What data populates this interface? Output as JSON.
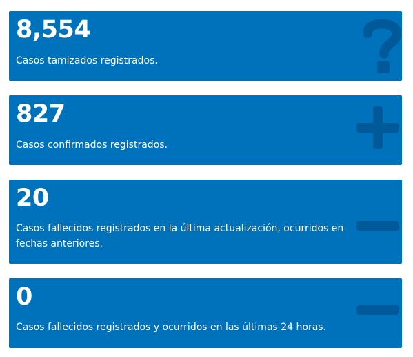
{
  "cards": [
    {
      "value": "8,554",
      "label": "Casos tamizados registrados.",
      "icon": "question-icon"
    },
    {
      "value": "827",
      "label": "Casos confirmados registrados.",
      "icon": "plus-icon"
    },
    {
      "value": "20",
      "label": "Casos fallecidos registrados en la última actualización, ocurridos en fechas anteriores.",
      "icon": "minus-icon"
    },
    {
      "value": "0",
      "label": "Casos fallecidos registrados y ocurridos en las últimas 24 horas.",
      "icon": "minus-icon"
    }
  ],
  "colors": {
    "card_background": "#0072bc",
    "icon_color": "#005a9a",
    "text": "#ffffff"
  }
}
